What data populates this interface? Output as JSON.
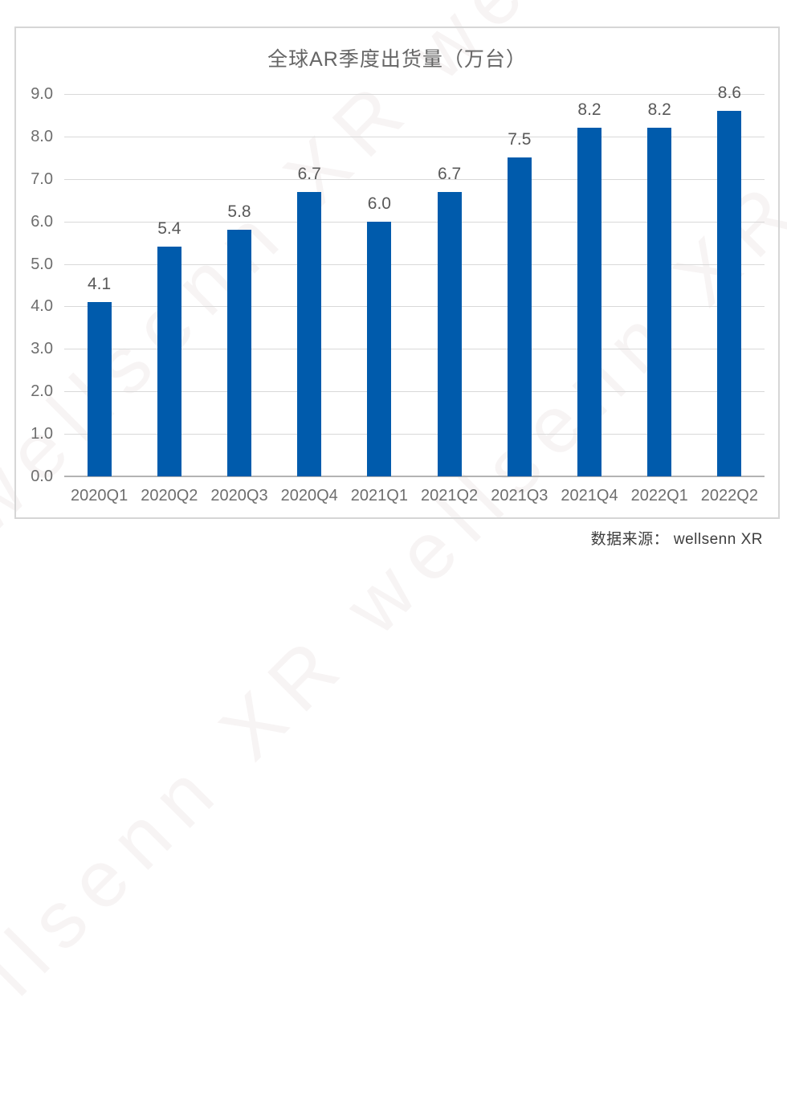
{
  "watermark": {
    "text": "wellsenn XR",
    "repeated": "wellsenn XR wellsenn XR wellsenn XR"
  },
  "source_note": "数据来源： wellsenn XR",
  "chart_data": {
    "type": "bar",
    "title": "全球AR季度出货量（万台）",
    "categories": [
      "2020Q1",
      "2020Q2",
      "2020Q3",
      "2020Q4",
      "2021Q1",
      "2021Q2",
      "2021Q3",
      "2021Q4",
      "2022Q1",
      "2022Q2"
    ],
    "values": [
      4.1,
      5.4,
      5.8,
      6.7,
      6.0,
      6.7,
      7.5,
      8.2,
      8.2,
      8.6
    ],
    "value_label_decimals": 1,
    "xlabel": "",
    "ylabel": "",
    "ylim": [
      0,
      9
    ],
    "ytick_step": 1,
    "ytick_decimals": 1,
    "grid": true,
    "legend": "none",
    "bar_color": "#005BAC",
    "gridline_color": "#d9d9d9",
    "baseline_color": "#b3b3b3",
    "axis_text_color": "#6e6e6e",
    "value_text_color": "#595959",
    "title_color": "#666666"
  }
}
